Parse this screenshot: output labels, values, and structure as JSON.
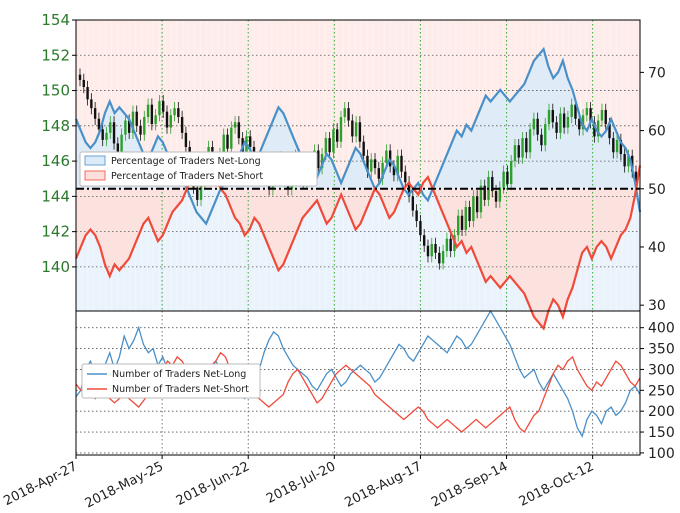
{
  "colors": {
    "long": "#4a90c8",
    "short": "#f04a3a",
    "candle_up": "#2ca02c",
    "candle_down": "#111111",
    "price_axis": "#2a7a2a",
    "grid_green": "#33aa33",
    "long_fill": "#dcebf8",
    "short_fill": "#fde0dc"
  },
  "chart_data": [
    {
      "type": "line",
      "panel": "top",
      "ylabel_left_ticks": [
        "154",
        "152",
        "150",
        "148",
        "146",
        "144",
        "142",
        "140"
      ],
      "y_left_range": [
        137.5,
        154
      ],
      "ylabel_right_ticks": [
        "70",
        "60",
        "50",
        "40",
        "30"
      ],
      "y_right_range": [
        29,
        79
      ],
      "reference_line_pct": 50,
      "legend": {
        "placement": "center-left",
        "entries": [
          "Percentage of Traders Net-Long",
          "Percentage of Traders Net-Short"
        ]
      },
      "price_ohlc_note": "USD/JPY candlesticks",
      "price_closes": [
        150.6,
        150.2,
        149.5,
        149.0,
        148.4,
        147.8,
        147.2,
        147.6,
        148.2,
        147.0,
        146.5,
        147.5,
        148.3,
        147.6,
        148.8,
        148.0,
        147.5,
        148.5,
        149.2,
        148.1,
        148.6,
        149.4,
        148.8,
        147.9,
        148.6,
        149.0,
        148.5,
        147.6,
        146.8,
        145.8,
        144.5,
        143.8,
        144.8,
        145.9,
        146.8,
        146.0,
        145.3,
        146.4,
        147.5,
        146.7,
        147.9,
        148.2,
        147.3,
        146.4,
        147.4,
        146.8,
        146.0,
        145.3,
        146.1,
        145.0,
        144.4,
        145.5,
        146.2,
        145.6,
        144.9,
        144.4,
        145.6,
        146.3,
        145.2,
        144.8,
        145.0,
        146.0,
        146.6,
        145.6,
        146.4,
        147.3,
        146.5,
        147.8,
        147.1,
        148.5,
        149.0,
        148.3,
        147.4,
        148.2,
        147.1,
        146.3,
        145.4,
        146.1,
        145.6,
        145.0,
        145.9,
        146.6,
        145.7,
        145.2,
        146.3,
        145.4,
        144.8,
        144.0,
        143.2,
        142.6,
        141.8,
        141.2,
        140.6,
        141.3,
        140.8,
        140.2,
        140.9,
        141.6,
        140.9,
        141.8,
        142.9,
        142.1,
        143.4,
        142.6,
        144.0,
        143.1,
        144.6,
        143.8,
        145.1,
        144.3,
        143.7,
        144.5,
        145.4,
        144.7,
        146.0,
        146.9,
        146.2,
        147.3,
        146.5,
        147.8,
        148.4,
        147.5,
        146.9,
        148.1,
        148.9,
        148.2,
        147.6,
        148.7,
        147.9,
        148.5,
        149.2,
        148.4,
        147.8,
        148.6,
        149.0,
        148.2,
        147.4,
        148.3,
        148.9,
        148.1,
        147.3,
        146.5,
        147.2,
        146.4,
        145.7,
        146.3,
        145.4,
        144.8
      ],
      "x_tick_labels": [
        "2018-Apr-27",
        "2018-May-25",
        "2018-Jun-22",
        "2018-Jul-20",
        "2018-Aug-17",
        "2018-Sep-14",
        "2018-Oct-12"
      ],
      "series": [
        {
          "name": "Percentage of Traders Net-Long",
          "values": [
            62,
            60,
            58,
            57,
            58,
            60,
            63,
            65,
            63,
            64,
            63,
            62,
            60,
            58,
            56,
            55,
            57,
            59,
            58,
            56,
            54,
            53,
            52,
            50,
            48,
            46,
            45,
            44,
            46,
            48,
            50,
            51,
            53,
            55,
            56,
            58,
            57,
            55,
            56,
            58,
            60,
            62,
            64,
            63,
            61,
            59,
            57,
            55,
            54,
            53,
            52,
            54,
            56,
            55,
            53,
            51,
            53,
            55,
            57,
            56,
            54,
            52,
            50,
            51,
            53,
            55,
            54,
            52,
            50,
            49,
            50,
            51,
            49,
            48,
            50,
            52,
            54,
            56,
            58,
            60,
            59,
            61,
            60,
            62,
            64,
            66,
            65,
            66,
            67,
            66,
            65,
            66,
            67,
            68,
            70,
            72,
            73,
            74,
            71,
            69,
            70,
            72,
            69,
            67,
            64,
            61,
            60,
            62,
            60,
            59,
            60,
            62,
            60,
            58,
            57,
            55,
            51,
            46
          ],
          "fill_above_50": "long_fill"
        },
        {
          "name": "Percentage of Traders Net-Short",
          "values": [
            38,
            40,
            42,
            43,
            42,
            40,
            37,
            35,
            37,
            36,
            37,
            38,
            40,
            42,
            44,
            45,
            43,
            41,
            42,
            44,
            46,
            47,
            48,
            50,
            52,
            54,
            55,
            56,
            54,
            52,
            50,
            49,
            47,
            45,
            44,
            42,
            43,
            45,
            44,
            42,
            40,
            38,
            36,
            37,
            39,
            41,
            43,
            45,
            46,
            47,
            48,
            46,
            44,
            45,
            47,
            49,
            47,
            45,
            43,
            44,
            46,
            48,
            50,
            49,
            47,
            45,
            46,
            48,
            50,
            51,
            50,
            49,
            51,
            52,
            50,
            48,
            46,
            44,
            42,
            40,
            41,
            39,
            40,
            38,
            36,
            34,
            35,
            34,
            33,
            34,
            35,
            34,
            33,
            32,
            30,
            28,
            27,
            26,
            29,
            31,
            30,
            28,
            31,
            33,
            36,
            39,
            40,
            38,
            40,
            41,
            40,
            38,
            40,
            42,
            43,
            45,
            49,
            54
          ],
          "fill_below_50": "short_fill"
        }
      ]
    },
    {
      "type": "line",
      "panel": "bottom",
      "ylabel_right_ticks": [
        "400",
        "350",
        "300",
        "250",
        "200",
        "150",
        "100"
      ],
      "y_right_range": [
        95,
        440
      ],
      "legend": {
        "placement": "center-left",
        "entries": [
          "Number of Traders Net-Long",
          "Number of Traders Net-Short"
        ]
      },
      "series": [
        {
          "name": "Number of Traders Net-Long",
          "values": [
            235,
            250,
            300,
            320,
            290,
            270,
            310,
            340,
            300,
            330,
            380,
            350,
            370,
            400,
            360,
            340,
            350,
            310,
            330,
            300,
            270,
            250,
            240,
            260,
            280,
            300,
            280,
            270,
            300,
            320,
            300,
            280,
            260,
            250,
            240,
            230,
            250,
            270,
            300,
            340,
            370,
            390,
            380,
            350,
            330,
            310,
            300,
            290,
            280,
            260,
            250,
            270,
            290,
            300,
            280,
            260,
            270,
            290,
            300,
            310,
            300,
            290,
            270,
            280,
            300,
            320,
            340,
            360,
            350,
            330,
            320,
            340,
            360,
            380,
            370,
            360,
            350,
            340,
            360,
            380,
            370,
            350,
            360,
            380,
            400,
            420,
            440,
            420,
            400,
            380,
            360,
            330,
            300,
            280,
            290,
            300,
            270,
            250,
            270,
            290,
            270,
            250,
            230,
            200,
            160,
            140,
            180,
            200,
            190,
            170,
            200,
            210,
            190,
            200,
            220,
            250,
            260,
            240
          ],
          "color": "long"
        },
        {
          "name": "Number of Traders Net-Short",
          "values": [
            265,
            250,
            245,
            240,
            230,
            250,
            240,
            230,
            220,
            230,
            240,
            230,
            220,
            210,
            225,
            240,
            260,
            280,
            300,
            320,
            310,
            330,
            320,
            300,
            290,
            280,
            270,
            300,
            310,
            320,
            340,
            330,
            300,
            270,
            250,
            240,
            250,
            240,
            230,
            220,
            210,
            220,
            230,
            240,
            270,
            290,
            300,
            280,
            260,
            240,
            220,
            230,
            250,
            270,
            290,
            300,
            310,
            300,
            290,
            280,
            270,
            260,
            240,
            230,
            220,
            210,
            200,
            190,
            180,
            190,
            200,
            210,
            200,
            180,
            170,
            160,
            170,
            180,
            170,
            160,
            150,
            160,
            170,
            180,
            170,
            160,
            170,
            180,
            190,
            200,
            210,
            180,
            160,
            150,
            170,
            190,
            200,
            230,
            260,
            290,
            310,
            300,
            320,
            330,
            300,
            280,
            260,
            250,
            270,
            260,
            280,
            300,
            320,
            310,
            290,
            270,
            260,
            280
          ],
          "color": "short"
        }
      ]
    }
  ]
}
